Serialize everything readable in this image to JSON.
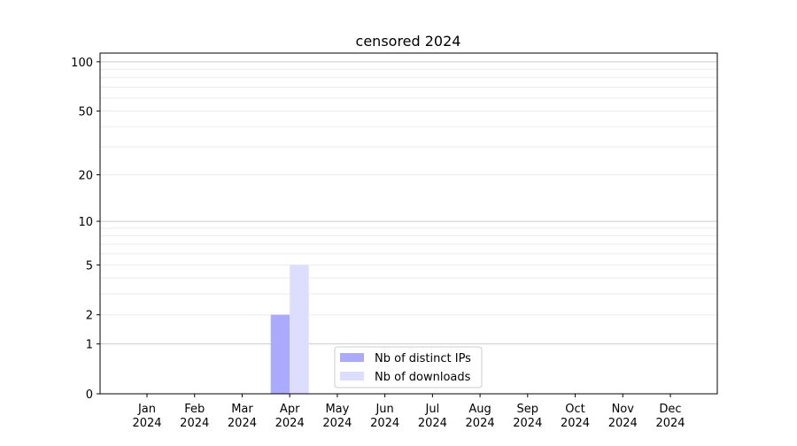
{
  "chart_data": {
    "type": "bar",
    "title": "censored 2024",
    "xlabel": "",
    "ylabel": "",
    "categories": [
      "Jan\n2024",
      "Feb\n2024",
      "Mar\n2024",
      "Apr\n2024",
      "May\n2024",
      "Jun\n2024",
      "Jul\n2024",
      "Aug\n2024",
      "Sep\n2024",
      "Oct\n2024",
      "Nov\n2024",
      "Dec\n2024"
    ],
    "series": [
      {
        "name": "Nb of distinct IPs",
        "color": "#aaaaff",
        "values": [
          0,
          0,
          0,
          2,
          0,
          0,
          0,
          0,
          0,
          0,
          0,
          0
        ]
      },
      {
        "name": "Nb of downloads",
        "color": "#ddddff",
        "values": [
          0,
          0,
          0,
          5,
          0,
          0,
          0,
          0,
          0,
          0,
          0,
          0
        ]
      }
    ],
    "y_scale": "log(1+y)",
    "ylim": [
      0,
      113
    ],
    "yticks": [
      0,
      1,
      2,
      5,
      10,
      20,
      50,
      100
    ],
    "grid": true,
    "legend_position": "lower-center"
  }
}
